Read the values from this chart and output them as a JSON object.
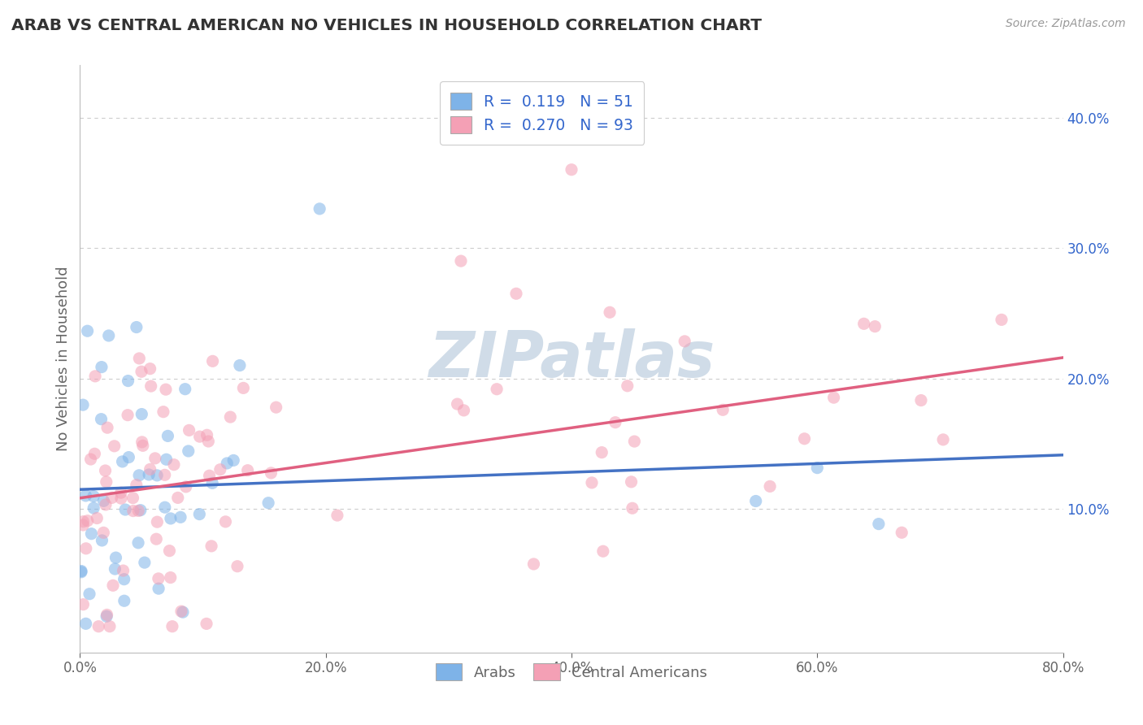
{
  "title": "ARAB VS CENTRAL AMERICAN NO VEHICLES IN HOUSEHOLD CORRELATION CHART",
  "source_text": "Source: ZipAtlas.com",
  "ylabel": "No Vehicles in Household",
  "xlim": [
    0,
    0.8
  ],
  "ylim": [
    -0.01,
    0.44
  ],
  "xtick_labels": [
    "0.0%",
    "20.0%",
    "40.0%",
    "60.0%",
    "80.0%"
  ],
  "xtick_values": [
    0,
    0.2,
    0.4,
    0.6,
    0.8
  ],
  "ytick_labels": [
    "10.0%",
    "20.0%",
    "30.0%",
    "40.0%"
  ],
  "ytick_values": [
    0.1,
    0.2,
    0.3,
    0.4
  ],
  "arab_color": "#7eb3e8",
  "arab_line_color": "#4472c4",
  "central_color": "#f4a0b5",
  "central_line_color": "#e06080",
  "arab_R": 0.119,
  "arab_N": 51,
  "central_R": 0.27,
  "central_N": 93,
  "background_color": "#ffffff",
  "grid_color": "#cccccc",
  "title_color": "#333333",
  "axis_color": "#666666",
  "legend_text_color": "#3366cc",
  "watermark_color": "#d0dce8",
  "legend_arab_label": "R =  0.119   N = 51",
  "legend_central_label": "R =  0.270   N = 93",
  "scatter_size": 120,
  "scatter_alpha": 0.55,
  "trend_linewidth": 2.5,
  "arab_seed": 10,
  "central_seed": 20
}
